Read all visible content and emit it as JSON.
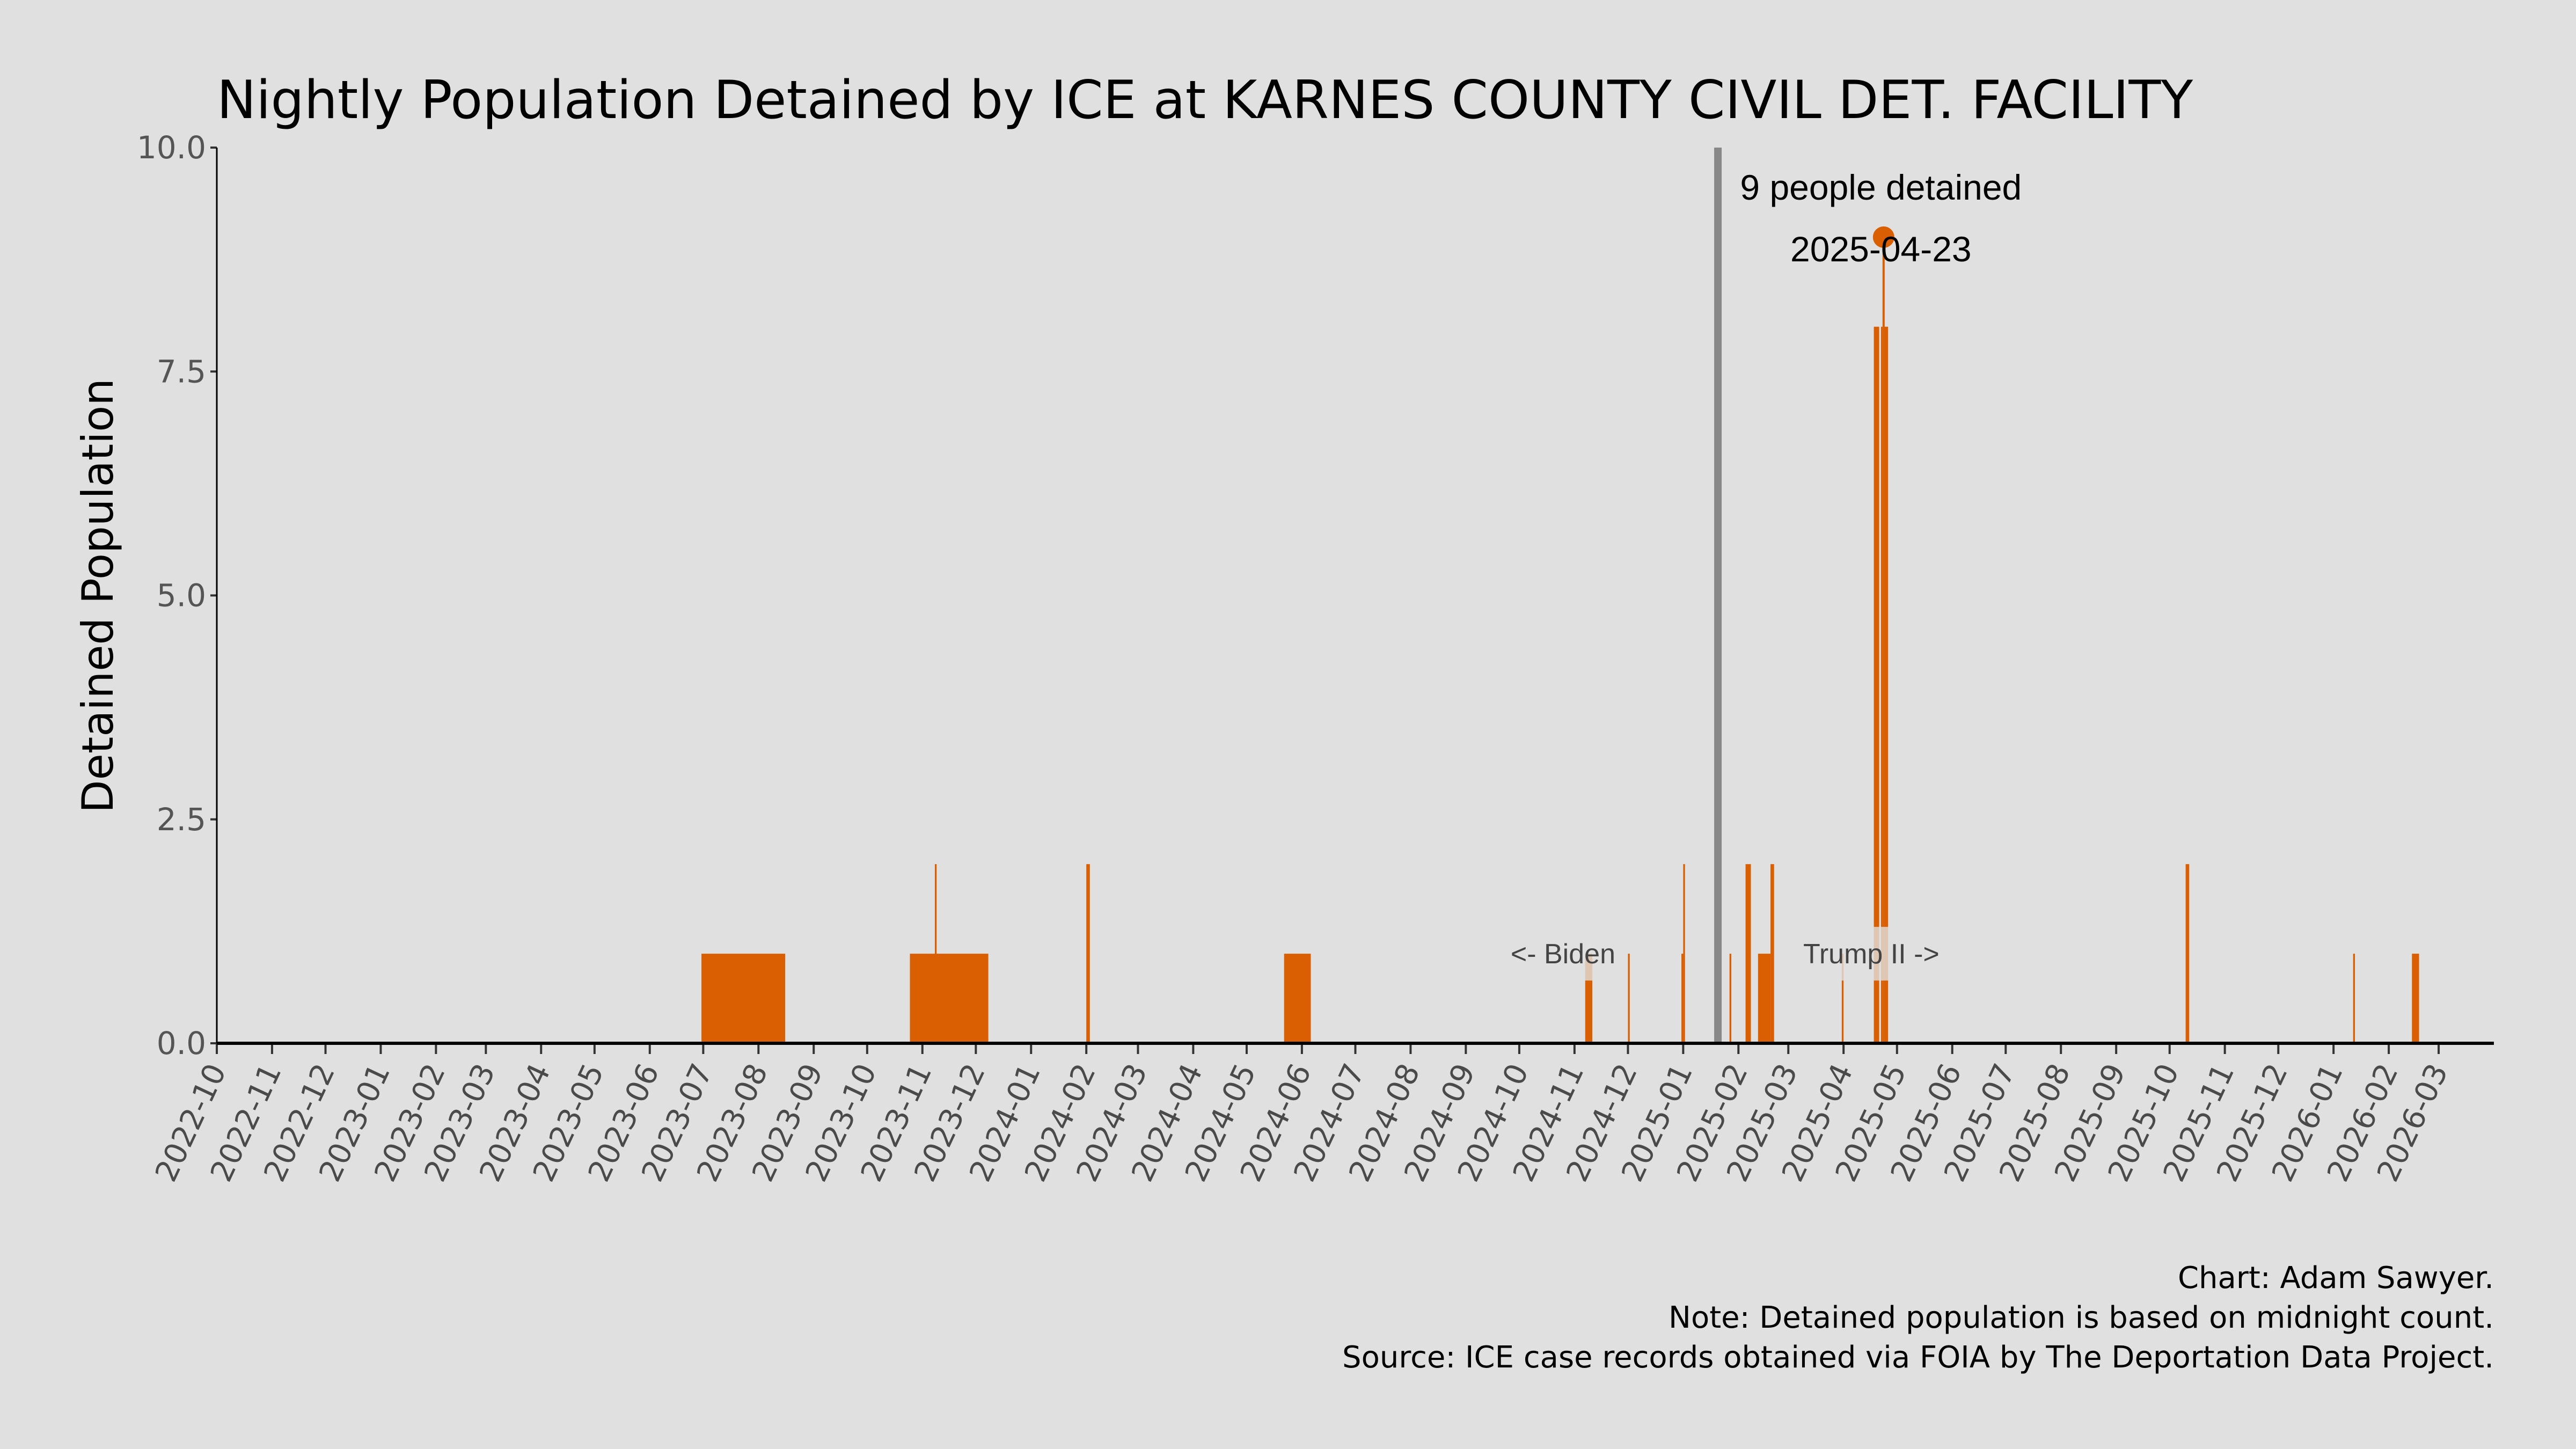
{
  "chart_data": {
    "type": "bar",
    "title": "Nightly Population Detained by ICE at KARNES COUNTY CIVIL DET. FACILITY",
    "xlabel": "",
    "ylabel": "Detained Population",
    "xlim": [
      "2022-10-01",
      "2026-03-31"
    ],
    "ylim": [
      0,
      10
    ],
    "yticks": [
      "0.0",
      "2.5",
      "5.0",
      "7.5",
      "10.0"
    ],
    "ytick_values": [
      0,
      2.5,
      5,
      7.5,
      10
    ],
    "xticks": [
      "2022-10",
      "2022-11",
      "2022-12",
      "2023-01",
      "2023-02",
      "2023-03",
      "2023-04",
      "2023-05",
      "2023-06",
      "2023-07",
      "2023-08",
      "2023-09",
      "2023-10",
      "2023-11",
      "2023-12",
      "2024-01",
      "2024-02",
      "2024-03",
      "2024-04",
      "2024-05",
      "2024-06",
      "2024-07",
      "2024-08",
      "2024-09",
      "2024-10",
      "2024-11",
      "2024-12",
      "2025-01",
      "2025-02",
      "2025-03",
      "2025-04",
      "2025-05",
      "2025-06",
      "2025-07",
      "2025-08",
      "2025-09",
      "2025-10",
      "2025-11",
      "2025-12",
      "2026-01",
      "2026-02",
      "2026-03"
    ],
    "grid": false,
    "bar_color": "#d95f02",
    "segments": [
      {
        "start": "2023-06-30",
        "end": "2023-08-15",
        "value": 1
      },
      {
        "start": "2023-10-25",
        "end": "2023-12-07",
        "value": 1
      },
      {
        "start": "2023-11-08",
        "end": "2023-11-08",
        "value": 2
      },
      {
        "start": "2024-02-01",
        "end": "2024-02-02",
        "value": 2
      },
      {
        "start": "2024-05-22",
        "end": "2024-06-05",
        "value": 1
      },
      {
        "start": "2024-11-07",
        "end": "2024-11-10",
        "value": 1
      },
      {
        "start": "2024-12-01",
        "end": "2024-12-01",
        "value": 1
      },
      {
        "start": "2024-12-31",
        "end": "2024-12-31",
        "value": 1
      },
      {
        "start": "2025-01-01",
        "end": "2025-01-01",
        "value": 2
      },
      {
        "start": "2025-01-27",
        "end": "2025-01-27",
        "value": 1
      },
      {
        "start": "2025-02-05",
        "end": "2025-02-07",
        "value": 2
      },
      {
        "start": "2025-02-12",
        "end": "2025-02-18",
        "value": 1
      },
      {
        "start": "2025-02-19",
        "end": "2025-02-20",
        "value": 2
      },
      {
        "start": "2025-03-31",
        "end": "2025-03-31",
        "value": 1
      },
      {
        "start": "2025-04-18",
        "end": "2025-04-20",
        "value": 8
      },
      {
        "start": "2025-04-22",
        "end": "2025-04-22",
        "value": 8
      },
      {
        "start": "2025-04-23",
        "end": "2025-04-23",
        "value": 9
      },
      {
        "start": "2025-04-24",
        "end": "2025-04-25",
        "value": 8
      },
      {
        "start": "2025-10-10",
        "end": "2025-10-11",
        "value": 2
      },
      {
        "start": "2026-01-12",
        "end": "2026-01-12",
        "value": 1
      },
      {
        "start": "2026-02-14",
        "end": "2026-02-17",
        "value": 1
      }
    ],
    "reference_line": {
      "date": "2025-01-20",
      "color": "#888888"
    },
    "peak": {
      "date": "2025-04-23",
      "value": 9,
      "label": "9 people detained",
      "date_label": "2025-04-23"
    },
    "era_labels": {
      "left": "<- Biden",
      "right": "Trump II ->"
    }
  },
  "footer": {
    "credit": "Chart: Adam Sawyer.",
    "note": "Note: Detained population is based on midnight count.",
    "source": "Source: ICE case records obtained via FOIA by The Deportation Data Project."
  }
}
